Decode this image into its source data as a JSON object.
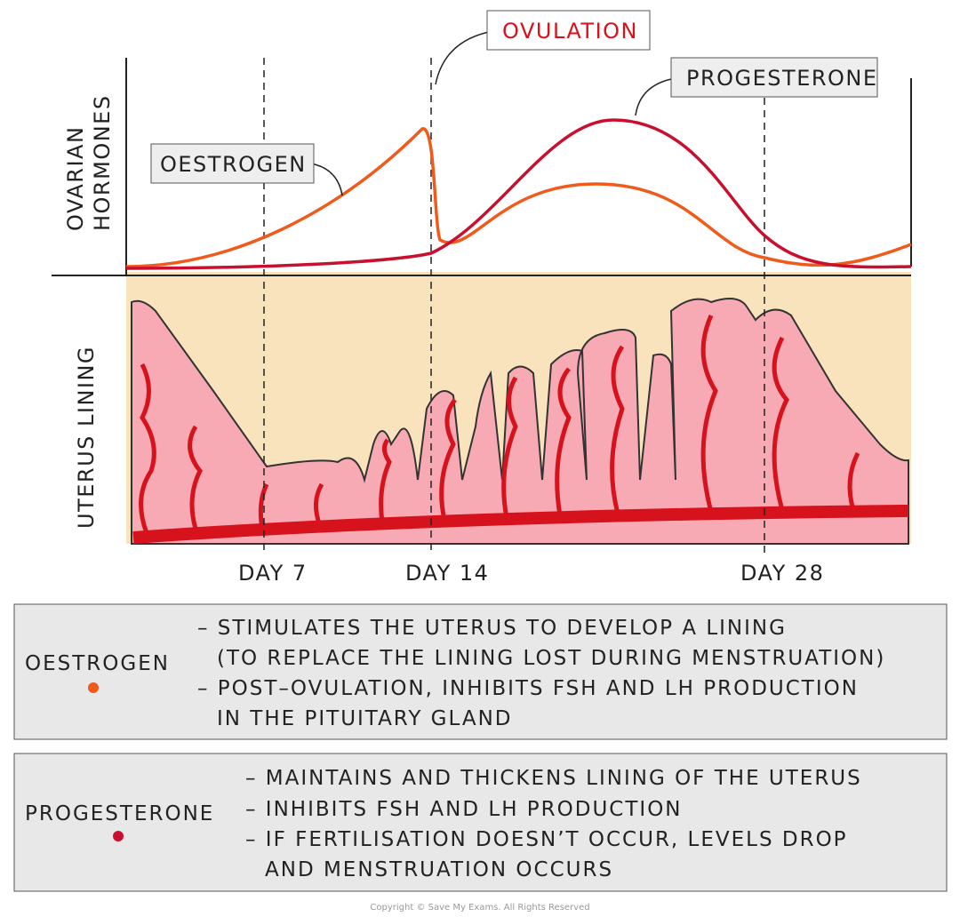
{
  "labels": {
    "ovulation": "OVULATION",
    "progesterone": "PROGESTERONE",
    "oestrogen": "OESTROGEN"
  },
  "axes": {
    "hormones": [
      "OVARIAN",
      "HORMONES"
    ],
    "uterus": "UTERUS LINING"
  },
  "days": [
    "DAY 7",
    "DAY 14",
    "DAY 28"
  ],
  "key": [
    {
      "name": "OESTROGEN",
      "lines": [
        "– STIMULATES THE UTERUS TO DEVELOP A LINING",
        "(TO REPLACE THE LINING LOST DURING MENSTRUATION)",
        "– POST–OVULATION, INHIBITS FSH AND LH PRODUCTION",
        "IN THE PITUITARY GLAND"
      ]
    },
    {
      "name": "PROGESTERONE",
      "lines": [
        "– MAINTAINS AND THICKENS LINING OF THE UTERUS",
        "– INHIBITS FSH AND LH PRODUCTION",
        "– IF FERTILISATION DOESN’T OCCUR, LEVELS DROP",
        "AND MENSTRUATION OCCURS"
      ]
    }
  ],
  "copyright": "Copyright © Save My Exams. All Rights Reserved"
}
